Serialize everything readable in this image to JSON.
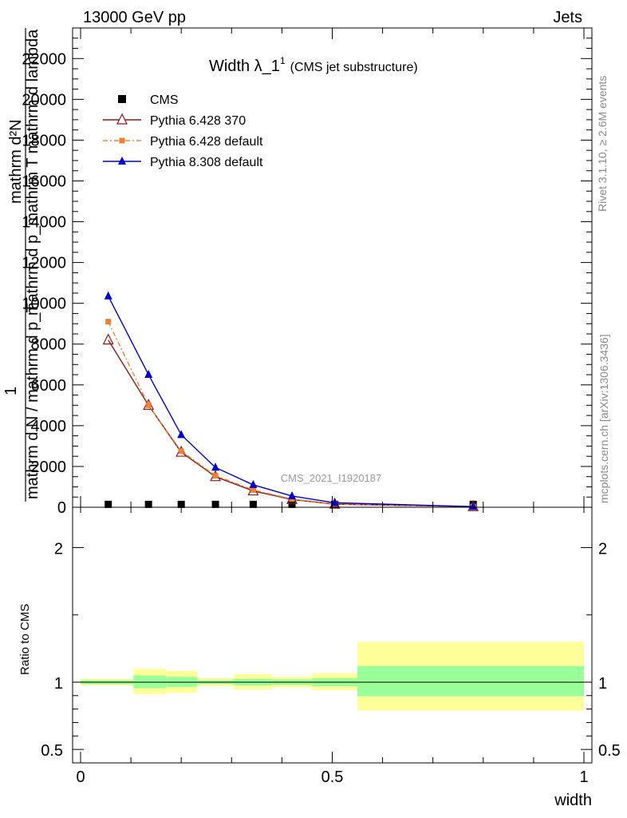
{
  "header": {
    "left": "13000 GeV pp",
    "right": "Jets"
  },
  "side_labels": {
    "rivet": "Rivet 3.1.10, ≥ 2.6M events",
    "mcplots": "mcplots.cern.ch [arXiv:1306.3436]"
  },
  "chart_data": {
    "type": "line",
    "title": "Width λ_1",
    "title_sup": "1",
    "title_note": "(CMS jet substructure)",
    "watermark": "CMS_2021_I1920187",
    "ylabel_main_lines": [
      "mathrm d²N",
      "mathrm d p_mathrm T mathrm d lambda"
    ],
    "ylabel_main_one": "1",
    "ylabel_main_denominator": "mathrm d N / mathrm d p_T",
    "ylabel_ratio": "Ratio to CMS",
    "xlabel": "width",
    "xlim": [
      0,
      1
    ],
    "ylim_main": [
      0,
      23500
    ],
    "ylim_ratio": [
      0.4,
      2.3
    ],
    "x_ticks": [
      "0",
      "0.5",
      "1"
    ],
    "y_ticks_main": [
      "0",
      "2000",
      "4000",
      "6000",
      "8000",
      "10000",
      "12000",
      "14000",
      "16000",
      "18000",
      "20000",
      "22000"
    ],
    "y_ticks_ratio": [
      "0.5",
      "1",
      "2"
    ],
    "legend_position": "top-left",
    "series": [
      {
        "name": "CMS",
        "color": "#000000",
        "marker": "square",
        "x": [
          0.055,
          0.135,
          0.2,
          0.268,
          0.343,
          0.42,
          0.505,
          0.78
        ],
        "y": [
          5,
          5,
          5,
          5,
          5,
          5,
          5,
          5
        ]
      },
      {
        "name": "Pythia 6.428 370",
        "color": "#8b1a1a",
        "marker": "triangle-open",
        "x": [
          0.055,
          0.135,
          0.2,
          0.268,
          0.343,
          0.42,
          0.505,
          0.78
        ],
        "y": [
          8200,
          5000,
          2700,
          1500,
          800,
          380,
          150,
          30
        ]
      },
      {
        "name": "Pythia 6.428 default",
        "color": "#f08030",
        "marker": "square-small",
        "dashed": true,
        "x": [
          0.055,
          0.135,
          0.2,
          0.268,
          0.343,
          0.42,
          0.505,
          0.78
        ],
        "y": [
          9100,
          5000,
          2750,
          1550,
          850,
          400,
          160,
          30
        ]
      },
      {
        "name": "Pythia 8.308 default",
        "color": "#0000cc",
        "marker": "triangle",
        "x": [
          0.055,
          0.135,
          0.2,
          0.268,
          0.343,
          0.42,
          0.505,
          0.78
        ],
        "y": [
          10350,
          6500,
          3550,
          1950,
          1100,
          550,
          220,
          30
        ]
      }
    ],
    "ratio_bands": {
      "colors": {
        "stat": "#99ff99",
        "total": "#ffff99"
      },
      "bins": [
        {
          "x0": 0.0,
          "x1": 0.105,
          "inner": [
            0.985,
            1.015
          ],
          "outer": [
            0.975,
            1.025
          ]
        },
        {
          "x0": 0.105,
          "x1": 0.17,
          "inner": [
            0.955,
            1.05
          ],
          "outer": [
            0.91,
            1.1
          ]
        },
        {
          "x0": 0.17,
          "x1": 0.232,
          "inner": [
            0.965,
            1.04
          ],
          "outer": [
            0.92,
            1.085
          ]
        },
        {
          "x0": 0.232,
          "x1": 0.305,
          "inner": [
            0.985,
            1.015
          ],
          "outer": [
            0.97,
            1.03
          ]
        },
        {
          "x0": 0.305,
          "x1": 0.38,
          "inner": [
            0.975,
            1.025
          ],
          "outer": [
            0.945,
            1.06
          ]
        },
        {
          "x0": 0.38,
          "x1": 0.46,
          "inner": [
            0.98,
            1.02
          ],
          "outer": [
            0.96,
            1.04
          ]
        },
        {
          "x0": 0.46,
          "x1": 0.55,
          "inner": [
            0.97,
            1.03
          ],
          "outer": [
            0.94,
            1.065
          ]
        },
        {
          "x0": 0.55,
          "x1": 1.0,
          "inner": [
            0.895,
            1.12
          ],
          "outer": [
            0.79,
            1.3
          ]
        }
      ]
    }
  }
}
